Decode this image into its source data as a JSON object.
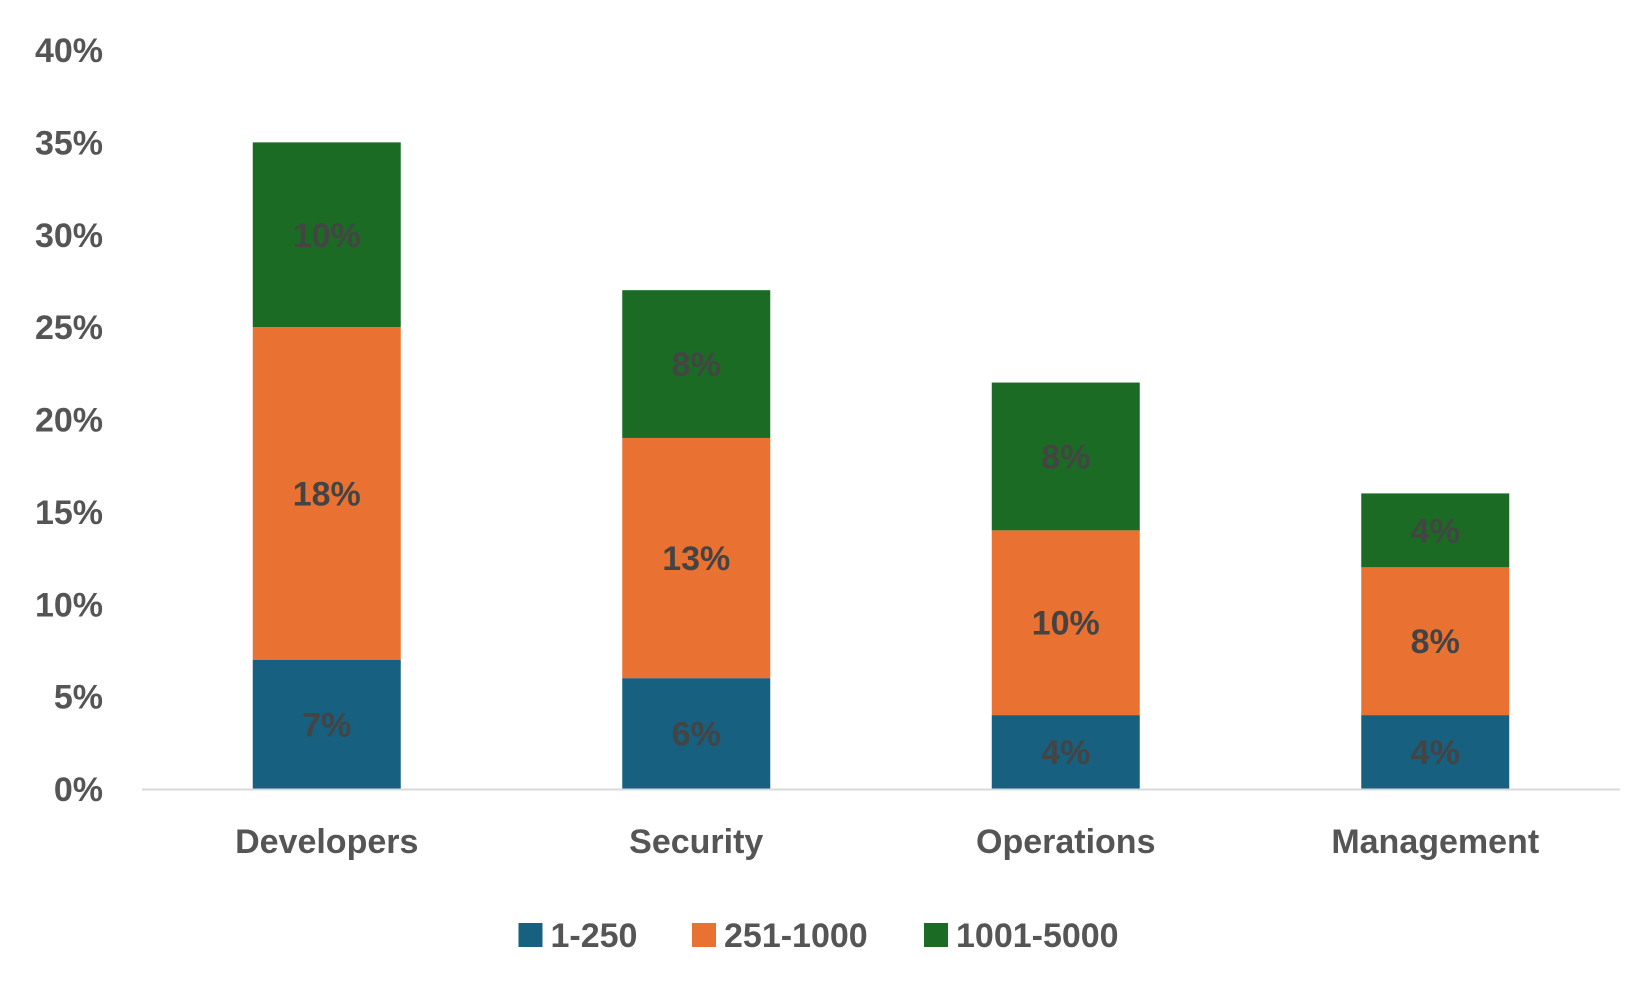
{
  "chart_data": {
    "type": "stacked-bar",
    "title": "",
    "xlabel": "",
    "ylabel": "",
    "ylim": [
      0,
      40
    ],
    "y_ticks": [
      0,
      5,
      10,
      15,
      20,
      25,
      30,
      35,
      40
    ],
    "y_tick_suffix": "%",
    "grid": false,
    "legend_position": "bottom-center",
    "categories": [
      "Developers",
      "Security",
      "Operations",
      "Management"
    ],
    "series": [
      {
        "name": "1-250",
        "color": "#17607F",
        "values": [
          7,
          6,
          4,
          4
        ]
      },
      {
        "name": "251-1000",
        "color": "#E97132",
        "values": [
          18,
          13,
          10,
          8
        ]
      },
      {
        "name": "1001-5000",
        "color": "#1B6B25",
        "values": [
          10,
          8,
          8,
          4
        ]
      }
    ],
    "data_labels": [
      [
        "7%",
        "6%",
        "4%",
        "4%"
      ],
      [
        "18%",
        "13%",
        "10%",
        "8%"
      ],
      [
        "10%",
        "8%",
        "8%",
        "4%"
      ]
    ]
  }
}
